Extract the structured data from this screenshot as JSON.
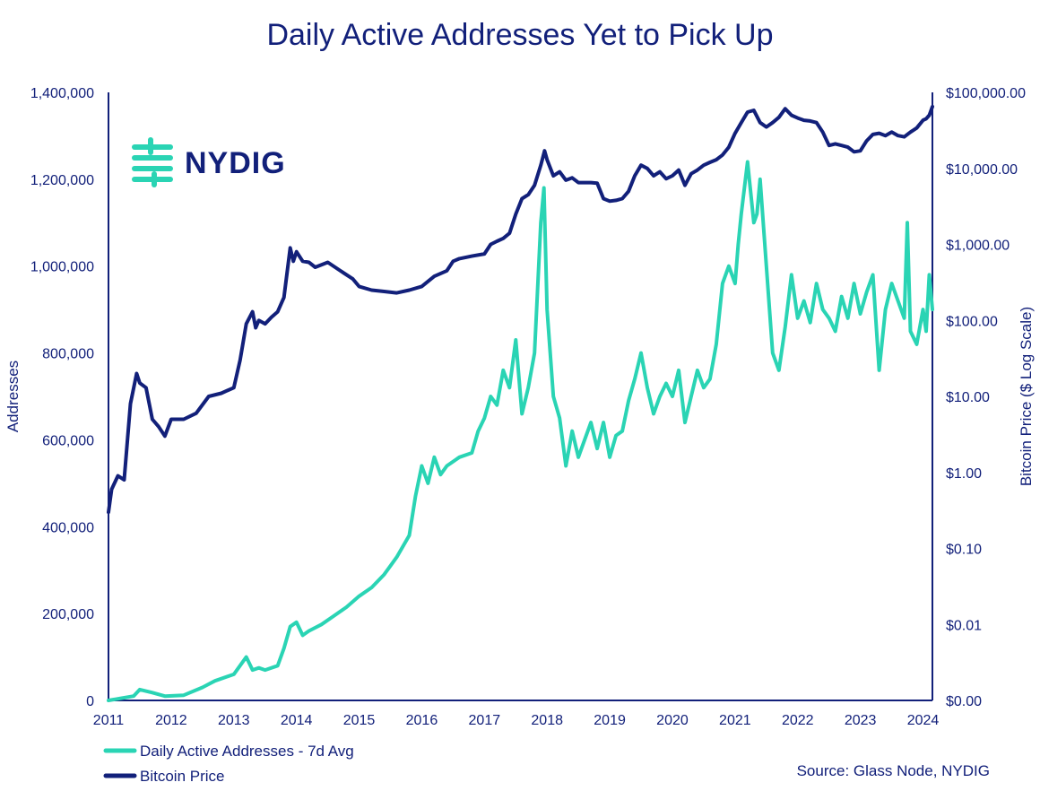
{
  "brand": {
    "logo_text": "NYDIG",
    "colors": {
      "navy": "#12207a",
      "teal": "#2ad4b4"
    }
  },
  "chart_data": {
    "type": "line",
    "title": "Daily Active Addresses Yet to Pick Up",
    "xlabel": "",
    "ylabel": "Addresses",
    "y2label": "Bitcoin Price ($ Log Scale)",
    "xlim": [
      2011.0,
      2024.15
    ],
    "ylim": [
      0,
      1400000
    ],
    "y2lim_log10": [
      -3,
      5
    ],
    "x_ticks": [
      "2011",
      "2012",
      "2013",
      "2014",
      "2015",
      "2016",
      "2017",
      "2018",
      "2019",
      "2020",
      "2021",
      "2022",
      "2023",
      "2024"
    ],
    "y_ticks": [
      "0",
      "200,000",
      "400,000",
      "600,000",
      "800,000",
      "1,000,000",
      "1,200,000",
      "1,400,000"
    ],
    "y2_ticks": [
      "$0.00",
      "$0.01",
      "$0.10",
      "$1.00",
      "$10.00",
      "$100.00",
      "$1,000.00",
      "$10,000.00",
      "$100,000.00"
    ],
    "series": [
      {
        "name": "Daily Active Addresses - 7d Avg",
        "axis": "left",
        "color": "#2ad4b4",
        "x": [
          2011.0,
          2011.2,
          2011.4,
          2011.5,
          2011.7,
          2011.9,
          2012.2,
          2012.5,
          2012.7,
          2013.0,
          2013.2,
          2013.3,
          2013.4,
          2013.5,
          2013.7,
          2013.8,
          2013.9,
          2014.0,
          2014.1,
          2014.2,
          2014.4,
          2014.6,
          2014.8,
          2015.0,
          2015.2,
          2015.4,
          2015.5,
          2015.6,
          2015.8,
          2015.9,
          2016.0,
          2016.1,
          2016.2,
          2016.3,
          2016.4,
          2016.6,
          2016.8,
          2016.9,
          2017.0,
          2017.1,
          2017.2,
          2017.3,
          2017.4,
          2017.5,
          2017.6,
          2017.7,
          2017.8,
          2017.9,
          2017.95,
          2018.0,
          2018.05,
          2018.1,
          2018.2,
          2018.3,
          2018.4,
          2018.5,
          2018.6,
          2018.7,
          2018.8,
          2018.9,
          2019.0,
          2019.1,
          2019.2,
          2019.3,
          2019.4,
          2019.5,
          2019.6,
          2019.7,
          2019.8,
          2019.9,
          2020.0,
          2020.1,
          2020.2,
          2020.3,
          2020.4,
          2020.5,
          2020.6,
          2020.7,
          2020.8,
          2020.9,
          2021.0,
          2021.05,
          2021.1,
          2021.2,
          2021.3,
          2021.35,
          2021.4,
          2021.5,
          2021.6,
          2021.7,
          2021.8,
          2021.9,
          2022.0,
          2022.1,
          2022.2,
          2022.3,
          2022.4,
          2022.5,
          2022.6,
          2022.7,
          2022.8,
          2022.9,
          2023.0,
          2023.1,
          2023.2,
          2023.3,
          2023.4,
          2023.5,
          2023.6,
          2023.7,
          2023.75,
          2023.8,
          2023.9,
          2024.0,
          2024.05,
          2024.1,
          2024.15
        ],
        "y": [
          0,
          5000,
          10000,
          25000,
          18000,
          10000,
          12000,
          30000,
          45000,
          60000,
          100000,
          70000,
          75000,
          70000,
          80000,
          120000,
          170000,
          180000,
          150000,
          160000,
          175000,
          195000,
          215000,
          240000,
          260000,
          290000,
          310000,
          330000,
          380000,
          470000,
          540000,
          500000,
          560000,
          520000,
          540000,
          560000,
          570000,
          620000,
          650000,
          700000,
          680000,
          760000,
          720000,
          830000,
          660000,
          720000,
          800000,
          1100000,
          1180000,
          900000,
          800000,
          700000,
          650000,
          540000,
          620000,
          560000,
          600000,
          640000,
          580000,
          640000,
          560000,
          610000,
          620000,
          690000,
          740000,
          800000,
          720000,
          660000,
          700000,
          730000,
          700000,
          760000,
          640000,
          700000,
          760000,
          720000,
          740000,
          820000,
          960000,
          1000000,
          960000,
          1050000,
          1120000,
          1240000,
          1100000,
          1120000,
          1200000,
          1000000,
          800000,
          760000,
          860000,
          980000,
          880000,
          920000,
          870000,
          960000,
          900000,
          880000,
          850000,
          930000,
          880000,
          960000,
          890000,
          940000,
          980000,
          760000,
          900000,
          960000,
          920000,
          880000,
          1100000,
          850000,
          820000,
          900000,
          850000,
          980000,
          900000
        ]
      },
      {
        "name": "Bitcoin Price",
        "axis": "right",
        "color": "#12207a",
        "x": [
          2011.0,
          2011.05,
          2011.15,
          2011.25,
          2011.35,
          2011.45,
          2011.5,
          2011.6,
          2011.7,
          2011.8,
          2011.9,
          2012.0,
          2012.2,
          2012.4,
          2012.6,
          2012.8,
          2013.0,
          2013.1,
          2013.2,
          2013.3,
          2013.35,
          2013.4,
          2013.5,
          2013.6,
          2013.7,
          2013.8,
          2013.9,
          2013.95,
          2014.0,
          2014.1,
          2014.2,
          2014.3,
          2014.5,
          2014.7,
          2014.9,
          2015.0,
          2015.2,
          2015.4,
          2015.6,
          2015.8,
          2016.0,
          2016.2,
          2016.4,
          2016.5,
          2016.6,
          2016.8,
          2017.0,
          2017.1,
          2017.2,
          2017.3,
          2017.4,
          2017.5,
          2017.6,
          2017.7,
          2017.8,
          2017.9,
          2017.96,
          2018.0,
          2018.1,
          2018.2,
          2018.3,
          2018.4,
          2018.5,
          2018.6,
          2018.7,
          2018.8,
          2018.9,
          2019.0,
          2019.1,
          2019.2,
          2019.3,
          2019.4,
          2019.5,
          2019.6,
          2019.7,
          2019.8,
          2019.9,
          2020.0,
          2020.1,
          2020.2,
          2020.3,
          2020.4,
          2020.5,
          2020.6,
          2020.7,
          2020.8,
          2020.9,
          2021.0,
          2021.1,
          2021.2,
          2021.3,
          2021.4,
          2021.5,
          2021.6,
          2021.7,
          2021.8,
          2021.9,
          2022.0,
          2022.1,
          2022.2,
          2022.3,
          2022.4,
          2022.5,
          2022.6,
          2022.7,
          2022.8,
          2022.9,
          2023.0,
          2023.1,
          2023.2,
          2023.3,
          2023.4,
          2023.5,
          2023.6,
          2023.7,
          2023.8,
          2023.9,
          2024.0,
          2024.05,
          2024.1,
          2024.15
        ],
        "y": [
          0.3,
          0.6,
          0.9,
          0.8,
          8,
          20,
          15,
          13,
          5,
          4,
          3,
          5,
          5,
          6,
          10,
          11,
          13,
          30,
          90,
          130,
          80,
          100,
          90,
          110,
          130,
          200,
          900,
          600,
          800,
          600,
          580,
          500,
          580,
          450,
          350,
          280,
          250,
          240,
          230,
          250,
          280,
          380,
          450,
          600,
          650,
          700,
          750,
          1000,
          1100,
          1200,
          1400,
          2500,
          4000,
          4500,
          6000,
          11000,
          17000,
          13000,
          8000,
          9000,
          7000,
          7500,
          6500,
          6500,
          6500,
          6400,
          4000,
          3700,
          3800,
          4000,
          5000,
          8000,
          11000,
          10000,
          8000,
          9000,
          7300,
          8000,
          9500,
          6000,
          8500,
          9500,
          11000,
          12000,
          13000,
          15000,
          19000,
          29000,
          40000,
          55000,
          58000,
          40000,
          35000,
          40000,
          47000,
          61000,
          50000,
          46000,
          43000,
          42000,
          40000,
          30000,
          20000,
          21000,
          20000,
          19000,
          16500,
          17000,
          23000,
          28000,
          29000,
          27000,
          30000,
          27000,
          26000,
          30000,
          34000,
          43000,
          45000,
          50000,
          65000
        ]
      }
    ],
    "legend": {
      "position": "bottom-left",
      "entries": [
        "Daily Active Addresses - 7d Avg",
        "Bitcoin Price"
      ]
    },
    "source": "Source: Glass Node, NYDIG"
  }
}
